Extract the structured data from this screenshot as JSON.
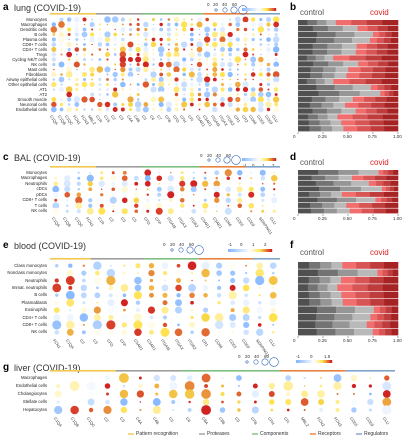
{
  "colors": {
    "pattern_recognition": "#f2c94c",
    "proteases": "#9e9e9e",
    "components": "#7fbf7f",
    "receptors": "#e8813c",
    "regulators": "#7fa3c9",
    "control": "#555555",
    "covid": "#e02020"
  },
  "panels": {
    "a": {
      "letter": "a",
      "title": "lung (COVID-19)"
    },
    "b": {
      "letter": "b",
      "control": "control",
      "covid": "covid"
    },
    "c": {
      "letter": "c",
      "title": "BAL (COVID-19)"
    },
    "d": {
      "letter": "d",
      "control": "control",
      "covid": "covid"
    },
    "e": {
      "letter": "e",
      "title": "blood (COVID-19)"
    },
    "f": {
      "letter": "f",
      "control": "control",
      "covid": "covid"
    },
    "g": {
      "letter": "g",
      "title": "liver (COVID-19)"
    }
  },
  "legend_sizes": [
    "0",
    "20",
    "40",
    "60"
  ],
  "legend_sizes_b": [
    "0",
    "20",
    "40",
    "60"
  ],
  "legend_colors": [
    "-1",
    "0",
    "1",
    "2"
  ],
  "legend_colors_e": [
    "-1",
    "0",
    "1",
    "2"
  ],
  "legend_colors_g": [
    "-1",
    "0",
    "1.5"
  ],
  "footer_legend": [
    "Pattern recognition",
    "Proteases",
    "Components",
    "Receptors",
    "Regulators"
  ],
  "chart_data": [
    {
      "type": "scatter",
      "title": "lung (COVID-19)",
      "rows": [
        "Monocytes",
        "Macrophages",
        "Dendritic cells",
        "B cells",
        "Plasma cells",
        "CD8+ T cells",
        "CD4+ T cells",
        "Tregs",
        "Cycling NK/T cells",
        "NK cells",
        "Mast cells",
        "Fibroblasts",
        "Airway epithelial cells",
        "Other epithelial cells",
        "AT1",
        "AT2",
        "Smooth muscle",
        "Neuronal cells",
        "Endothelial cells"
      ],
      "columns": [
        "C1QA",
        "C1QB",
        "C1QC",
        "FCN1",
        "FCN3",
        "MBL2",
        "C1R",
        "C1S",
        "C2",
        "C3",
        "C4A",
        "C4B",
        "C5",
        "C6",
        "C7",
        "CFB",
        "CFD",
        "CFH",
        "CFI",
        "C5AR1",
        "C3AR1",
        "ITGAM",
        "ITGAX",
        "ITGB2",
        "CR1",
        "CR2",
        "CD46",
        "CD55",
        "CD59",
        "CLU"
      ]
    },
    {
      "type": "bar",
      "title": "",
      "categories_count": 19,
      "series": [
        {
          "name": "control"
        },
        {
          "name": "covid"
        }
      ],
      "xlim": [
        0,
        1
      ],
      "xticks": [
        "0",
        "0.25",
        "0.50",
        "0.75",
        "1.00"
      ]
    },
    {
      "type": "scatter",
      "title": "BAL (COVID-19)",
      "rows": [
        "Monocytes",
        "Macrophages",
        "Neutrophils",
        "cDCs",
        "pDCs",
        "CD8+ T cells",
        "T cells",
        "NK cells"
      ],
      "columns": [
        "C1QA",
        "C1QB",
        "C1QC",
        "FCN1",
        "C1R",
        "C2",
        "C3",
        "C5",
        "CFD",
        "CFP",
        "ITGAM",
        "ITGAX",
        "ITGB2",
        "C5AR1",
        "C3AR1",
        "CD46",
        "CD55",
        "CD59",
        "SERPING1",
        "CLU"
      ]
    },
    {
      "type": "bar",
      "title": "",
      "categories_count": 8,
      "series": [
        {
          "name": "control"
        },
        {
          "name": "covid"
        }
      ],
      "xlim": [
        0,
        1
      ],
      "xticks": [
        "0",
        "0.25",
        "0.50",
        "0.75",
        "1.00"
      ]
    },
    {
      "type": "scatter",
      "title": "blood (COVID-19)",
      "rows": [
        "Class monocytes",
        "Nonclass monocytes",
        "Neutrophils",
        "Immat. neutrophils",
        "B cells",
        "Plasmablasts",
        "Eosinophils",
        "CD4+ T cells",
        "CD8+ T cells",
        "NK cells"
      ],
      "columns": [
        "FCN1",
        "C1QA",
        "C2",
        "C3",
        "CFD",
        "CFP",
        "C5AR1",
        "C3AR1",
        "ITGAM",
        "ITGAX",
        "ITGB2",
        "CR1",
        "CD46",
        "CD55",
        "CD59",
        "SERPING1",
        "CLU"
      ]
    },
    {
      "type": "bar",
      "title": "",
      "categories_count": 10,
      "series": [
        {
          "name": "control"
        },
        {
          "name": "covid"
        }
      ],
      "xlim": [
        0,
        1
      ],
      "xticks": [
        "0",
        "0.25",
        "0.50",
        "0.75",
        "1.00"
      ]
    },
    {
      "type": "scatter",
      "title": "liver (COVID-19)",
      "rows": [
        "Macrophages",
        "Endothelial cells",
        "Cholangiocytes",
        "Stellate cells",
        "Hepatocytes"
      ],
      "columns": [
        "C1QA",
        "C1QB",
        "C1QC",
        "C2",
        "C3",
        "C4A",
        "C4B",
        "C5",
        "C6",
        "C8A",
        "C8B",
        "C9",
        "CFB",
        "CFH",
        "CFI",
        "MBL2",
        "FCN2",
        "FCN3",
        "CD55",
        "CD59",
        "CLU"
      ]
    }
  ]
}
